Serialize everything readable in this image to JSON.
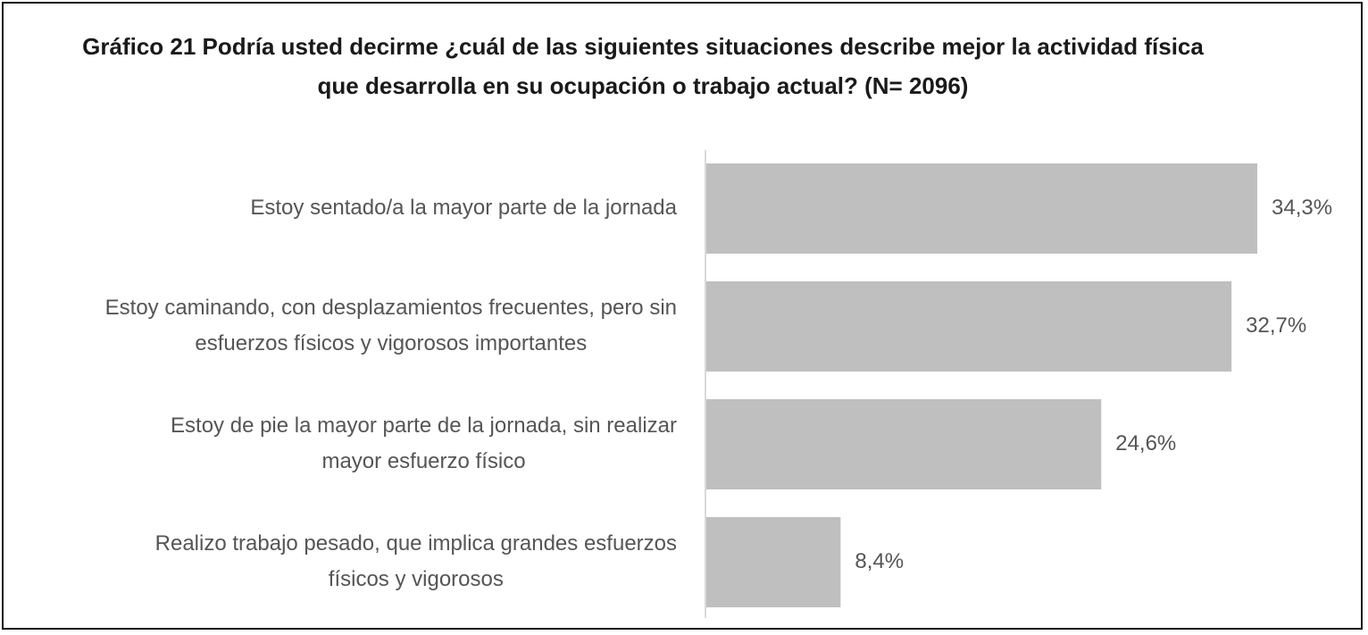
{
  "chart_data": {
    "type": "bar",
    "orientation": "horizontal",
    "title_lines": [
      "Gráfico 21 Podría usted decirme ¿cuál de las siguientes situaciones describe mejor la actividad física",
      "que desarrolla en su ocupación o trabajo actual? (N= 2096)"
    ],
    "categories": [
      [
        "Estoy sentado/a la mayor parte de la jornada"
      ],
      [
        "Estoy caminando, con desplazamientos frecuentes, pero sin",
        "esfuerzos físicos y vigorosos importantes"
      ],
      [
        "Estoy de pie la mayor parte de la jornada, sin realizar",
        "mayor esfuerzo físico"
      ],
      [
        "Realizo trabajo pesado, que implica grandes esfuerzos",
        "físicos y vigorosos"
      ]
    ],
    "values": [
      34.3,
      32.7,
      24.6,
      8.4
    ],
    "value_labels": [
      "34,3%",
      "32,7%",
      "24,6%",
      "8,4%"
    ],
    "unit": "%",
    "bar_color": "#bfbfbf",
    "axis_color": "#d9d9d9",
    "grid": false,
    "legend": "none"
  }
}
